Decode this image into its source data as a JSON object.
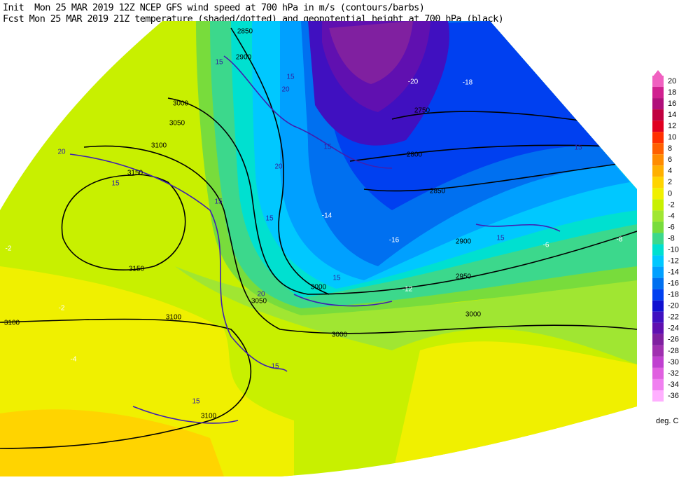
{
  "header": {
    "line1": "Init  Mon 25 MAR 2019 12Z NCEP GFS wind speed at 700 hPa in m/s (contours/barbs)",
    "line2": "Fcst Mon 25 MAR 2019 21Z temperature (shaded/dotted) and geopotential height at 700 hPa (black)"
  },
  "colorbar": {
    "levels": [
      {
        "value": 20,
        "color": "#f060c0"
      },
      {
        "value": 18,
        "color": "#d0208f"
      },
      {
        "value": 16,
        "color": "#b0107a"
      },
      {
        "value": 14,
        "color": "#c00040"
      },
      {
        "value": 12,
        "color": "#e00020"
      },
      {
        "value": 10,
        "color": "#ff3000"
      },
      {
        "value": 8,
        "color": "#ff6000"
      },
      {
        "value": 6,
        "color": "#ff8c00"
      },
      {
        "value": 4,
        "color": "#ffb000"
      },
      {
        "value": 2,
        "color": "#ffd400"
      },
      {
        "value": 0,
        "color": "#f0f000"
      },
      {
        "value": -2,
        "color": "#c8f000"
      },
      {
        "value": -4,
        "color": "#a0e632"
      },
      {
        "value": -6,
        "color": "#78dc3c"
      },
      {
        "value": -8,
        "color": "#3cd88c"
      },
      {
        "value": -10,
        "color": "#00e0d0"
      },
      {
        "value": -12,
        "color": "#00c8ff"
      },
      {
        "value": -14,
        "color": "#00a0ff"
      },
      {
        "value": -16,
        "color": "#0070f0"
      },
      {
        "value": -18,
        "color": "#0040f0"
      },
      {
        "value": -20,
        "color": "#1010d0"
      },
      {
        "value": -22,
        "color": "#4010c0"
      },
      {
        "value": -24,
        "color": "#6010b0"
      },
      {
        "value": -26,
        "color": "#8020a0"
      },
      {
        "value": -28,
        "color": "#a030b0"
      },
      {
        "value": -30,
        "color": "#c040d0"
      },
      {
        "value": -32,
        "color": "#e060e0"
      },
      {
        "value": -34,
        "color": "#f080f0"
      },
      {
        "value": -36,
        "color": "#ffb0ff"
      }
    ],
    "unit": "deg. C"
  },
  "map_labels": [
    "2850",
    "2900",
    "3000",
    "3050",
    "3100",
    "3150",
    "3150",
    "3100",
    "3100",
    "3050",
    "3000",
    "3000",
    "2950",
    "2900",
    "2850",
    "2800",
    "2750",
    "3000",
    "3100",
    "15",
    "15",
    "20",
    "20",
    "15",
    "15",
    "15",
    "15",
    "20",
    "15",
    "15",
    "15",
    "15",
    "20",
    "15",
    "-2",
    "-2",
    "-4",
    "-18",
    "-20",
    "-14",
    "-16",
    "-12",
    "-8",
    "-6"
  ]
}
